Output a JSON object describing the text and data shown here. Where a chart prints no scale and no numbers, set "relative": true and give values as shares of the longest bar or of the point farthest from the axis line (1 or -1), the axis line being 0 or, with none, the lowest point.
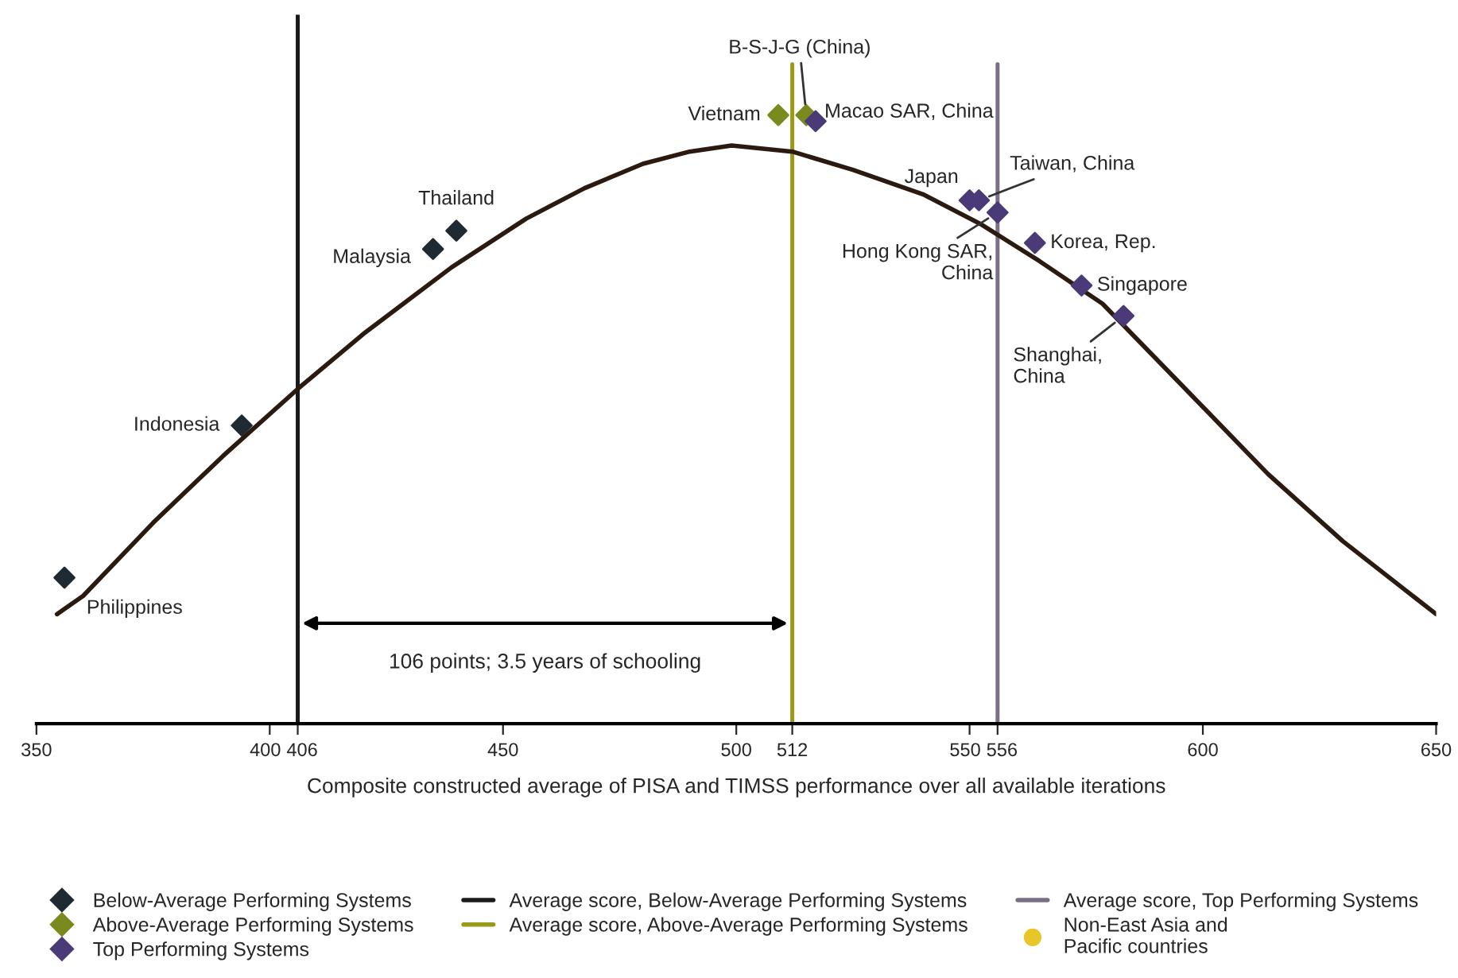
{
  "chart_data": {
    "type": "scatter",
    "relative": true,
    "xlabel": "Composite constructed average of PISA and TIMSS performance over all available iterations",
    "xlim": [
      350,
      650
    ],
    "xticks": [
      350,
      400,
      406,
      450,
      500,
      512,
      550,
      556,
      600,
      650
    ],
    "marker": "diamond",
    "legend": "bottom",
    "grid": false,
    "series": [
      {
        "type": "line",
        "color": "#2a1a10",
        "marker": "none",
        "x": [
          354.4,
          360,
          375,
          390,
          406,
          420,
          439,
          455,
          467.5,
          480,
          490,
          499,
          512,
          525,
          540,
          552.6,
          565,
          578.5,
          595,
          614,
          630,
          650
        ],
        "values": [
          0.18,
          0.21,
          0.33,
          0.44,
          0.55,
          0.64,
          0.75,
          0.83,
          0.88,
          0.92,
          0.94,
          0.95,
          0.94,
          0.91,
          0.87,
          0.82,
          0.76,
          0.69,
          0.56,
          0.41,
          0.3,
          0.18
        ]
      },
      {
        "name": "Below-Average Performing Systems",
        "color": "#1f2a33",
        "x": [
          356,
          394,
          435,
          440
        ],
        "values": [
          0.24,
          0.49,
          0.78,
          0.81
        ]
      },
      {
        "name": "Above-Average Performing Systems",
        "color": "#7a8a1e",
        "x": [
          509,
          515
        ],
        "values": [
          1.0,
          1.0
        ]
      },
      {
        "name": "Top Performing Systems",
        "color": "#4b3a78",
        "x": [
          517,
          550,
          552,
          556,
          564,
          574,
          583
        ],
        "values": [
          0.99,
          0.86,
          0.86,
          0.84,
          0.79,
          0.72,
          0.67
        ]
      },
      {
        "name": "Non-East Asia and\nPacific countries",
        "color": "#e8c62a",
        "marker": "circle"
      }
    ],
    "ref_lines": [
      {
        "axis": "x",
        "value": 406,
        "label": "Average score, Below-Average Performing Systems",
        "color": "#1a1a1a"
      },
      {
        "axis": "x",
        "value": 512,
        "label": "Average score, Above-Average Performing Systems",
        "color": "#9a9a1a"
      },
      {
        "axis": "x",
        "value": 556,
        "label": "Average score, Top Performing Systems",
        "color": "#7a6f85"
      }
    ],
    "annotations": [
      {
        "text": "Philippines",
        "x": 356,
        "y": 0.24
      },
      {
        "text": "Indonesia",
        "x": 394,
        "y": 0.49
      },
      {
        "text": "Malaysia",
        "x": 435,
        "y": 0.78
      },
      {
        "text": "Thailand",
        "x": 440,
        "y": 0.81
      },
      {
        "text": "Vietnam",
        "x": 509,
        "y": 1.0
      },
      {
        "text": "B-S-J-G (China)",
        "x": 515,
        "y": 1.0
      },
      {
        "text": "Macao SAR, China",
        "x": 517,
        "y": 0.99
      },
      {
        "text": "Japan",
        "x": 550,
        "y": 0.86
      },
      {
        "text": "Taiwan, China",
        "x": 552,
        "y": 0.86
      },
      {
        "text": "Hong Kong SAR,\nChina",
        "x": 556,
        "y": 0.84
      },
      {
        "text": "Korea, Rep.",
        "x": 564,
        "y": 0.79
      },
      {
        "text": "Singapore",
        "x": 574,
        "y": 0.72
      },
      {
        "text": "Shanghai,\nChina",
        "x": 583,
        "y": 0.67
      },
      "106 points; 3.5 years of schooling"
    ]
  }
}
